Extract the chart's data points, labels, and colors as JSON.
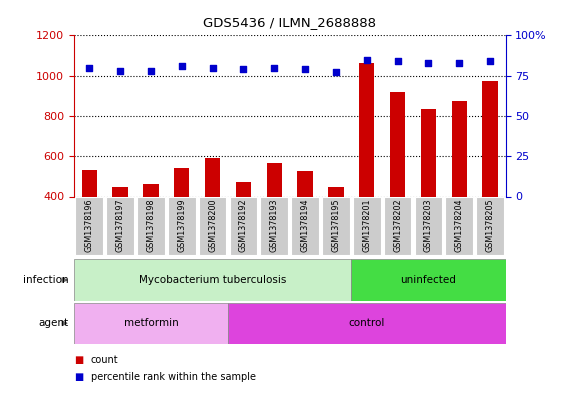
{
  "title": "GDS5436 / ILMN_2688888",
  "samples": [
    "GSM1378196",
    "GSM1378197",
    "GSM1378198",
    "GSM1378199",
    "GSM1378200",
    "GSM1378192",
    "GSM1378193",
    "GSM1378194",
    "GSM1378195",
    "GSM1378201",
    "GSM1378202",
    "GSM1378203",
    "GSM1378204",
    "GSM1378205"
  ],
  "bar_values": [
    530,
    445,
    460,
    540,
    590,
    470,
    565,
    525,
    448,
    1065,
    920,
    835,
    875,
    975
  ],
  "dot_values": [
    80,
    78,
    78,
    81,
    80,
    79,
    80,
    79,
    77,
    85,
    84,
    83,
    83,
    84
  ],
  "bar_color": "#cc0000",
  "dot_color": "#0000cc",
  "ylim_left": [
    400,
    1200
  ],
  "ylim_right": [
    0,
    100
  ],
  "yticks_left": [
    400,
    600,
    800,
    1000,
    1200
  ],
  "yticks_right": [
    0,
    25,
    50,
    75,
    100
  ],
  "n_infection_tb": 9,
  "n_infection_un": 5,
  "n_agent_metformin": 5,
  "n_agent_control": 9,
  "infection_tb_label": "Mycobacterium tuberculosis",
  "infection_un_label": "uninfected",
  "agent_metformin_label": "metformin",
  "agent_control_label": "control",
  "infection_tb_color": "#c8f0c8",
  "infection_un_color": "#44dd44",
  "agent_metformin_color": "#f0b0f0",
  "agent_control_color": "#dd44dd",
  "infection_label": "infection",
  "agent_label": "agent",
  "tick_label_color_left": "#cc0000",
  "tick_label_color_right": "#0000cc",
  "xtick_bg_color": "#cccccc",
  "legend_count_color": "#cc0000",
  "legend_pct_color": "#0000cc",
  "legend_count_label": "count",
  "legend_pct_label": "percentile rank within the sample"
}
